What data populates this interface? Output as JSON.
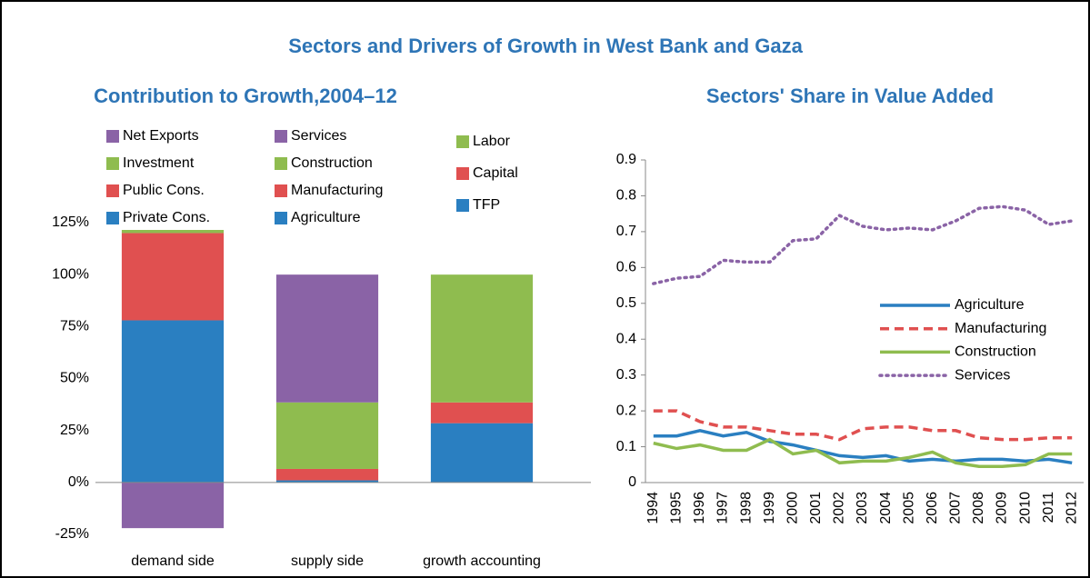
{
  "title": "Sectors and Drivers of Growth in West Bank and Gaza",
  "chart_data": [
    {
      "type": "stacked_bar",
      "title": "Contribution to Growth,2004–12",
      "categories": [
        "demand side",
        "supply side",
        "growth accounting"
      ],
      "ylim": [
        -25,
        125
      ],
      "yticks": [
        {
          "value": -25,
          "label": "-25%"
        },
        {
          "value": 0,
          "label": "0%"
        },
        {
          "value": 25,
          "label": "25%"
        },
        {
          "value": 50,
          "label": "50%"
        },
        {
          "value": 75,
          "label": "75%"
        },
        {
          "value": 100,
          "label": "100%"
        },
        {
          "value": 125,
          "label": "125%"
        }
      ],
      "grid": false,
      "series": [
        {
          "name": "Private Cons.",
          "color": "#2a7fc1",
          "values": [
            78,
            null,
            null
          ]
        },
        {
          "name": "Public Cons.",
          "color": "#e05050",
          "values": [
            42,
            null,
            null
          ]
        },
        {
          "name": "Investment",
          "color": "#8fbc4f",
          "values": [
            1.5,
            null,
            null
          ]
        },
        {
          "name": "Net Exports",
          "color": "#8a63a6",
          "values": [
            -22,
            null,
            null
          ]
        },
        {
          "name": "Agriculture",
          "color": "#2a7fc1",
          "values": [
            null,
            1,
            null
          ]
        },
        {
          "name": "Manufacturing",
          "color": "#e05050",
          "values": [
            null,
            5.5,
            null
          ]
        },
        {
          "name": "Construction",
          "color": "#8fbc4f",
          "values": [
            null,
            32,
            null
          ]
        },
        {
          "name": "Services",
          "color": "#8a63a6",
          "values": [
            null,
            61.5,
            null
          ]
        },
        {
          "name": "TFP",
          "color": "#2a7fc1",
          "values": [
            null,
            null,
            28.5
          ]
        },
        {
          "name": "Capital",
          "color": "#e05050",
          "values": [
            null,
            null,
            10
          ]
        },
        {
          "name": "Labor",
          "color": "#8fbc4f",
          "values": [
            null,
            null,
            61.5
          ]
        }
      ]
    },
    {
      "type": "line",
      "title": "Sectors' Share in Value Added",
      "categories": [
        "1994",
        "1995",
        "1996",
        "1997",
        "1998",
        "1999",
        "2000",
        "2001",
        "2002",
        "2003",
        "2004",
        "2005",
        "2006",
        "2007",
        "2008",
        "2009",
        "2010",
        "2011",
        "2012"
      ],
      "ylim": [
        0,
        0.9
      ],
      "yticks": [
        0,
        0.1,
        0.2,
        0.3,
        0.4,
        0.5,
        0.6,
        0.7,
        0.8,
        0.9
      ],
      "grid": false,
      "legend": "right",
      "series": [
        {
          "name": "Agriculture",
          "color": "#2a7fc1",
          "dash": "solid",
          "values": [
            0.13,
            0.13,
            0.145,
            0.13,
            0.14,
            0.115,
            0.105,
            0.09,
            0.075,
            0.07,
            0.075,
            0.06,
            0.065,
            0.06,
            0.065,
            0.065,
            0.06,
            0.065,
            0.055
          ]
        },
        {
          "name": "Manufacturing",
          "color": "#e05050",
          "dash": "dashed",
          "values": [
            0.2,
            0.2,
            0.17,
            0.155,
            0.155,
            0.145,
            0.135,
            0.135,
            0.12,
            0.15,
            0.155,
            0.155,
            0.145,
            0.145,
            0.125,
            0.12,
            0.12,
            0.125,
            0.125
          ]
        },
        {
          "name": "Construction",
          "color": "#8fbc4f",
          "dash": "solid",
          "values": [
            0.11,
            0.095,
            0.105,
            0.09,
            0.09,
            0.12,
            0.08,
            0.09,
            0.055,
            0.06,
            0.06,
            0.07,
            0.085,
            0.055,
            0.045,
            0.045,
            0.05,
            0.08,
            0.08
          ]
        },
        {
          "name": "Services",
          "color": "#8a63a6",
          "dash": "dotted",
          "values": [
            0.555,
            0.57,
            0.575,
            0.62,
            0.615,
            0.615,
            0.675,
            0.68,
            0.745,
            0.715,
            0.705,
            0.71,
            0.705,
            0.73,
            0.765,
            0.77,
            0.76,
            0.72,
            0.73
          ]
        }
      ]
    }
  ]
}
